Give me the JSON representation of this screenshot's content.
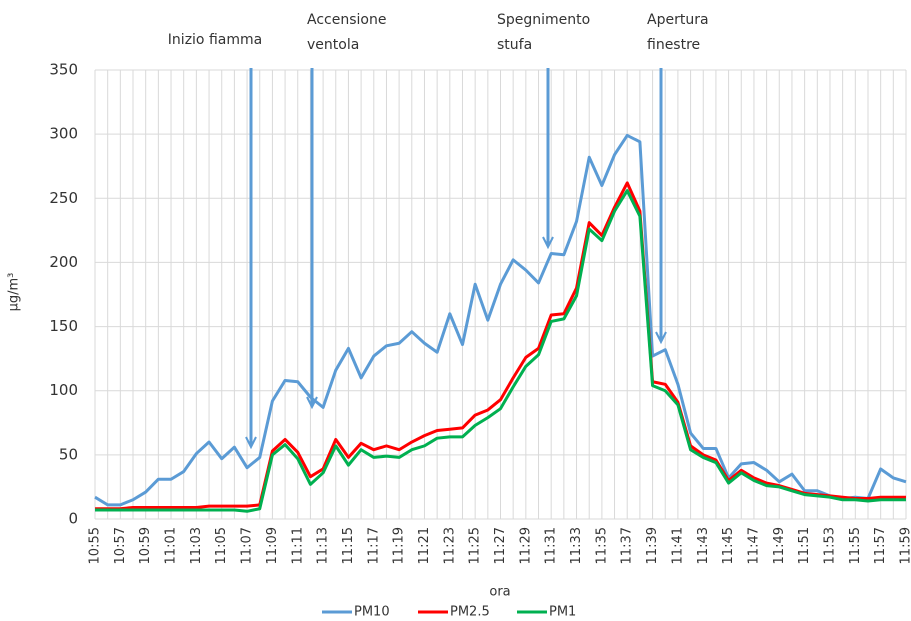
{
  "chart_data": {
    "type": "line",
    "y_label": "µg/m³",
    "x_label": "ora",
    "annotations": [
      [
        "Inizio fiamma"
      ],
      [
        "Accensione",
        "ventola"
      ],
      [
        "Spegnimento",
        "stufa"
      ],
      [
        "Apertura",
        "finestre"
      ]
    ],
    "categories": [
      "10:55",
      null,
      "10:57",
      null,
      "10:59",
      null,
      "11:01",
      null,
      "11:03",
      null,
      "11:05",
      null,
      "11:07",
      null,
      "11:09",
      null,
      "11:11",
      null,
      "11:13",
      null,
      "11:15",
      null,
      "11:17",
      null,
      "11:19",
      null,
      "11:21",
      null,
      "11:23",
      null,
      "11:25",
      null,
      "11:27",
      null,
      "11:29",
      null,
      "11:31",
      null,
      "11:33",
      null,
      "11:35",
      null,
      "11:37",
      null,
      "11:39",
      null,
      "11:41",
      null,
      "11:43",
      null,
      "11:45",
      null,
      "11:47",
      null,
      "11:49",
      null,
      "11:51",
      null,
      "11:53",
      null,
      "11:55",
      null,
      "11:57",
      null,
      "11:59"
    ],
    "series": [
      {
        "name": "PM10",
        "color": "#5b9bd5",
        "values": [
          17,
          11,
          11,
          15,
          21,
          31,
          31,
          37,
          51,
          60,
          47,
          56,
          40,
          48,
          92,
          108,
          107,
          95,
          87,
          116,
          133,
          110,
          127,
          135,
          137,
          146,
          137,
          130,
          160,
          136,
          183,
          155,
          183,
          202,
          194,
          184,
          207,
          206,
          232,
          282,
          260,
          284,
          299,
          294,
          127,
          132,
          105,
          67,
          55,
          55,
          32,
          43,
          44,
          38,
          29,
          35,
          22,
          22,
          18,
          16,
          17,
          16,
          39,
          32,
          29
        ]
      },
      {
        "name": "PM2.5",
        "color": "#ff0000",
        "values": [
          8,
          8,
          8,
          9,
          9,
          9,
          9,
          9,
          9,
          10,
          10,
          10,
          10,
          11,
          53,
          62,
          52,
          33,
          39,
          62,
          48,
          59,
          54,
          57,
          54,
          60,
          65,
          69,
          70,
          71,
          81,
          85,
          93,
          110,
          126,
          133,
          159,
          160,
          180,
          231,
          221,
          243,
          262,
          240,
          107,
          105,
          91,
          57,
          50,
          46,
          30,
          38,
          32,
          28,
          26,
          23,
          20,
          19,
          18,
          17,
          16,
          16,
          17,
          17,
          17
        ]
      },
      {
        "name": "PM1",
        "color": "#00b050",
        "values": [
          7,
          7,
          7,
          7,
          7,
          7,
          7,
          7,
          7,
          7,
          7,
          7,
          6,
          8,
          50,
          58,
          47,
          27,
          36,
          57,
          42,
          54,
          48,
          49,
          48,
          54,
          57,
          63,
          64,
          64,
          73,
          79,
          86,
          103,
          119,
          128,
          154,
          156,
          174,
          226,
          217,
          240,
          256,
          236,
          104,
          100,
          89,
          54,
          48,
          44,
          28,
          36,
          30,
          26,
          25,
          22,
          19,
          18,
          17,
          15,
          15,
          14,
          15,
          15,
          15
        ]
      }
    ],
    "ylim": [
      0,
      350
    ],
    "yticks": [
      0,
      50,
      100,
      150,
      200,
      250,
      300,
      350
    ],
    "grid": true,
    "legend": "bottom"
  }
}
